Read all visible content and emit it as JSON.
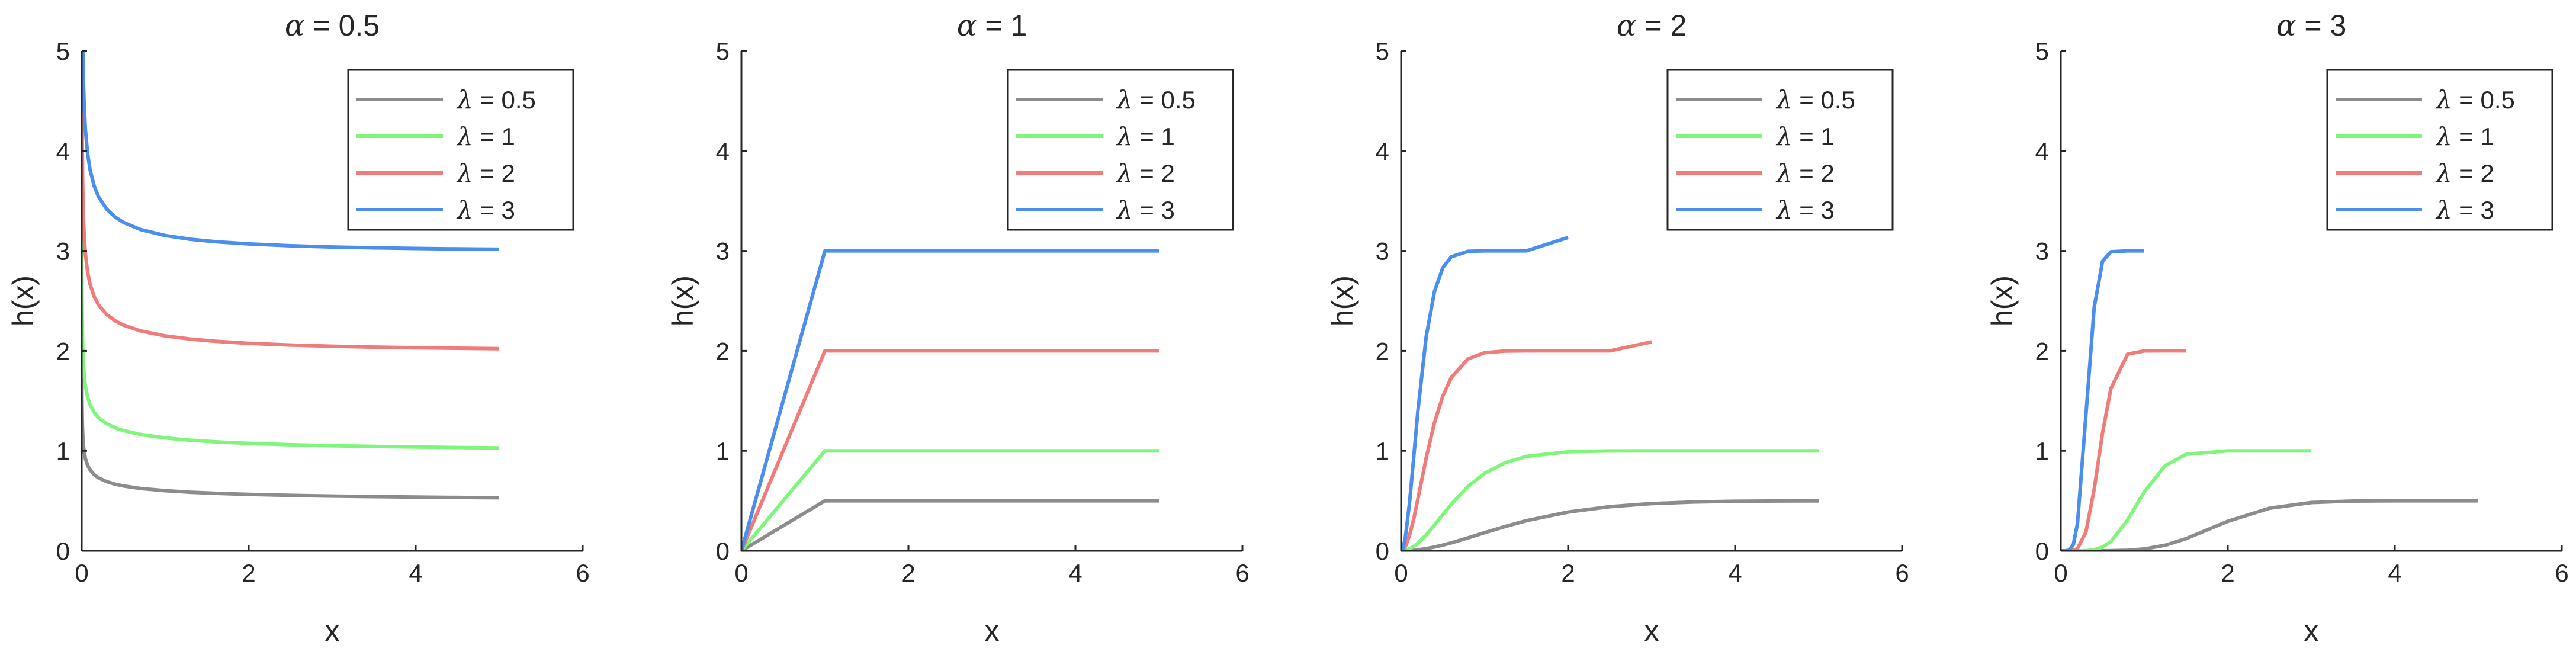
{
  "chart_data": [
    {
      "type": "line",
      "title_symbol": "α",
      "title_value": "0.5",
      "xlabel": "x",
      "ylabel": "h(x)",
      "xlim": [
        0,
        6
      ],
      "ylim": [
        0,
        5
      ],
      "xticks": [
        "0",
        "2",
        "4",
        "6"
      ],
      "yticks": [
        "0",
        "1",
        "2",
        "3",
        "4",
        "5"
      ],
      "grid": false,
      "legend": "top-right",
      "alpha": 0.5,
      "x": [
        0.0001,
        0.0005,
        0.001,
        0.003,
        0.007,
        0.012,
        0.02,
        0.03,
        0.045,
        0.07,
        0.1,
        0.15,
        0.2,
        0.3,
        0.4,
        0.5,
        0.7,
        1.0,
        1.3,
        1.6,
        2.0,
        2.5,
        3.0,
        3.5,
        4.0,
        4.5,
        5.0
      ],
      "series": [
        {
          "label_value": "0.5",
          "color": "#8c8c8c",
          "lambda": 0.5
        },
        {
          "label_value": "1",
          "color": "#7ff57c",
          "lambda": 1
        },
        {
          "label_value": "2",
          "color": "#f07b7b",
          "lambda": 2
        },
        {
          "label_value": "3",
          "color": "#4a8ff0",
          "lambda": 3
        }
      ]
    },
    {
      "type": "line",
      "title_symbol": "α",
      "title_value": "1",
      "xlabel": "x",
      "ylabel": "h(x)",
      "xlim": [
        0,
        6
      ],
      "ylim": [
        0,
        5
      ],
      "xticks": [
        "0",
        "2",
        "4",
        "6"
      ],
      "yticks": [
        "0",
        "1",
        "2",
        "3",
        "4",
        "5"
      ],
      "grid": false,
      "legend": "top-right",
      "alpha": 1,
      "x": [
        0,
        1,
        2,
        3,
        4,
        5
      ],
      "series": [
        {
          "label_value": "0.5",
          "color": "#8c8c8c",
          "lambda": 0.5
        },
        {
          "label_value": "1",
          "color": "#7ff57c",
          "lambda": 1
        },
        {
          "label_value": "2",
          "color": "#f07b7b",
          "lambda": 2
        },
        {
          "label_value": "3",
          "color": "#4a8ff0",
          "lambda": 3
        }
      ]
    },
    {
      "type": "line",
      "title_symbol": "α",
      "title_value": "2",
      "xlabel": "x",
      "ylabel": "h(x)",
      "xlim": [
        0,
        6
      ],
      "ylim": [
        0,
        5
      ],
      "xticks": [
        "0",
        "2",
        "4",
        "6"
      ],
      "yticks": [
        "0",
        "1",
        "2",
        "3",
        "4",
        "5"
      ],
      "grid": false,
      "legend": "top-right",
      "alpha": 2,
      "x": [
        0,
        0.02,
        0.05,
        0.1,
        0.15,
        0.2,
        0.3,
        0.4,
        0.5,
        0.6,
        0.8,
        1.0,
        1.25,
        1.5,
        2.0,
        2.5,
        3.0,
        3.5,
        4.0,
        4.5,
        5.0
      ],
      "series": [
        {
          "label_value": "0.5",
          "color": "#8c8c8c",
          "lambda": 0.5
        },
        {
          "label_value": "1",
          "color": "#7ff57c",
          "lambda": 1
        },
        {
          "label_value": "2",
          "color": "#f07b7b",
          "lambda": 2
        },
        {
          "label_value": "3",
          "color": "#4a8ff0",
          "lambda": 3
        }
      ]
    },
    {
      "type": "line",
      "title_symbol": "α",
      "title_value": "3",
      "xlabel": "x",
      "ylabel": "h(x)",
      "xlim": [
        0,
        6
      ],
      "ylim": [
        0,
        5
      ],
      "xticks": [
        "0",
        "2",
        "4",
        "6"
      ],
      "yticks": [
        "0",
        "1",
        "2",
        "3",
        "4",
        "5"
      ],
      "grid": false,
      "legend": "top-right",
      "alpha": 3,
      "x": [
        0,
        0.02,
        0.05,
        0.1,
        0.15,
        0.2,
        0.3,
        0.4,
        0.5,
        0.6,
        0.8,
        1.0,
        1.25,
        1.5,
        2.0,
        2.5,
        3.0,
        3.5,
        4.0,
        4.5,
        5.0
      ],
      "series": [
        {
          "label_value": "0.5",
          "color": "#8c8c8c",
          "lambda": 0.5
        },
        {
          "label_value": "1",
          "color": "#7ff57c",
          "lambda": 1
        },
        {
          "label_value": "2",
          "color": "#f07b7b",
          "lambda": 2
        },
        {
          "label_value": "3",
          "color": "#4a8ff0",
          "lambda": 3
        }
      ]
    }
  ]
}
